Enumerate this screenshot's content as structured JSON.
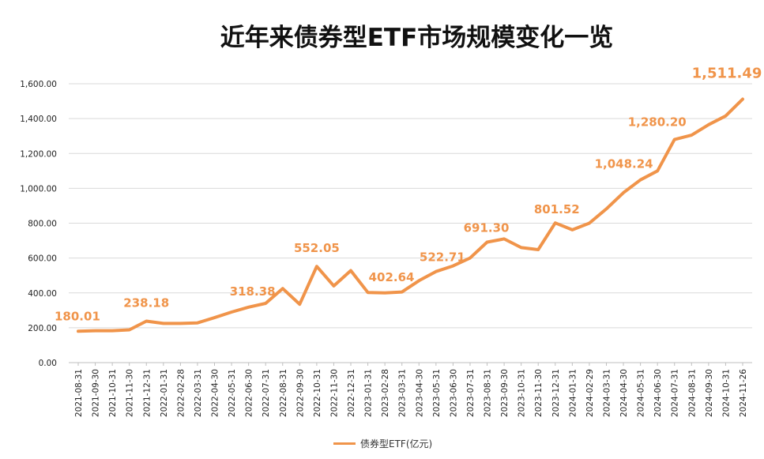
{
  "chart_data": {
    "type": "line",
    "title": "近年来债券型ETF市场规模变化一览",
    "xlabel": "",
    "ylabel": "",
    "ylim": [
      0,
      1600
    ],
    "yticks": [
      "0.00",
      "200.00",
      "400.00",
      "600.00",
      "800.00",
      "1,000.00",
      "1,200.00",
      "1,400.00",
      "1,600.00"
    ],
    "grid": true,
    "legend_position": "bottom-center",
    "line_color": "#F0944A",
    "label_color": "#F0944A",
    "categories": [
      "2021-08-31",
      "2021-09-30",
      "2021-10-31",
      "2021-11-30",
      "2021-12-31",
      "2022-01-31",
      "2022-02-28",
      "2022-03-31",
      "2022-04-30",
      "2022-05-31",
      "2022-06-30",
      "2022-07-31",
      "2022-08-31",
      "2022-09-30",
      "2022-10-31",
      "2022-11-30",
      "2022-12-31",
      "2023-01-31",
      "2023-02-28",
      "2023-03-31",
      "2023-04-30",
      "2023-05-31",
      "2023-06-30",
      "2023-07-31",
      "2023-08-31",
      "2023-09-30",
      "2023-10-31",
      "2023-11-30",
      "2023-12-31",
      "2024-01-31",
      "2024-02-29",
      "2024-03-31",
      "2024-04-30",
      "2024-05-31",
      "2024-06-30",
      "2024-07-31",
      "2024-08-31",
      "2024-09-30",
      "2024-10-31",
      "2024-11-26"
    ],
    "series": [
      {
        "name": "债券型ETF(亿元)",
        "values": [
          180.01,
          183,
          183,
          188,
          238.18,
          225,
          225,
          228,
          258,
          290,
          318.38,
          340,
          425,
          335,
          552.05,
          440,
          528,
          402.64,
          400,
          405,
          470,
          522.71,
          555,
          600,
          691.3,
          710,
          660,
          648,
          801.52,
          762,
          800,
          882,
          975,
          1048.24,
          1100,
          1280.2,
          1305,
          1365,
          1415,
          1511.49
        ]
      }
    ],
    "data_labels": [
      {
        "index": 0,
        "text": "180.01"
      },
      {
        "index": 4,
        "text": "238.18"
      },
      {
        "index": 10,
        "text": "318.38"
      },
      {
        "index": 14,
        "text": "552.05"
      },
      {
        "index": 17,
        "text": "402.64"
      },
      {
        "index": 21,
        "text": "522.71"
      },
      {
        "index": 24,
        "text": "691.30"
      },
      {
        "index": 28,
        "text": "801.52"
      },
      {
        "index": 33,
        "text": "1,048.24"
      },
      {
        "index": 35,
        "text": "1,280.20"
      },
      {
        "index": 39,
        "text": "1,511.49"
      }
    ]
  }
}
